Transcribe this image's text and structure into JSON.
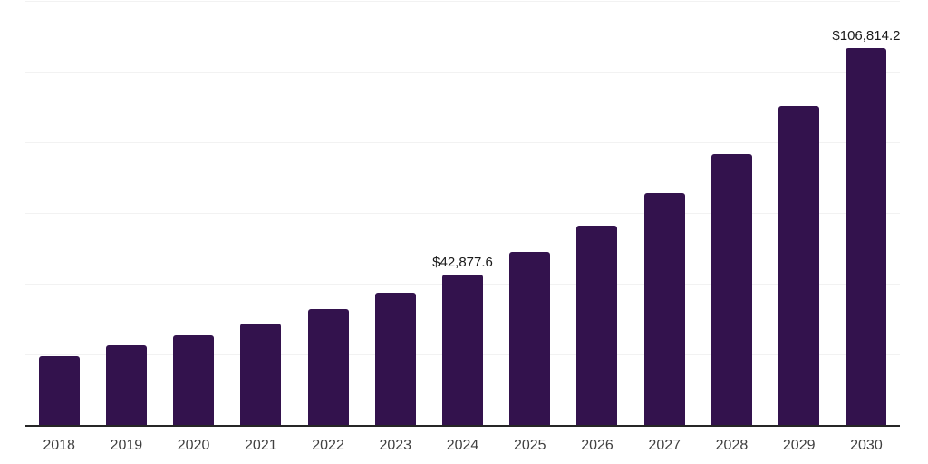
{
  "chart_data": {
    "type": "bar",
    "title": "",
    "xlabel": "",
    "ylabel": "",
    "categories": [
      "2018",
      "2019",
      "2020",
      "2021",
      "2022",
      "2023",
      "2024",
      "2025",
      "2026",
      "2027",
      "2028",
      "2029",
      "2030"
    ],
    "values": [
      19700,
      22800,
      25600,
      29000,
      33100,
      37700,
      42877.6,
      49300,
      56700,
      66000,
      77000,
      90400,
      106814.2
    ],
    "data_labels": {
      "2024": "$42,877.6",
      "2030": "$106,814.2"
    },
    "ylim": [
      0,
      120000
    ],
    "gridline_step": 20000,
    "grid": "horizontal-only",
    "legend": "none",
    "y_axis_tick_labels": "none",
    "bar_color": "#33124d",
    "axis_line_color": "#262626",
    "gridline_color": "#f2f2f2",
    "data_label_color": "#1a1a1a",
    "tick_label_color": "#404040",
    "background_color": "#ffffff"
  }
}
